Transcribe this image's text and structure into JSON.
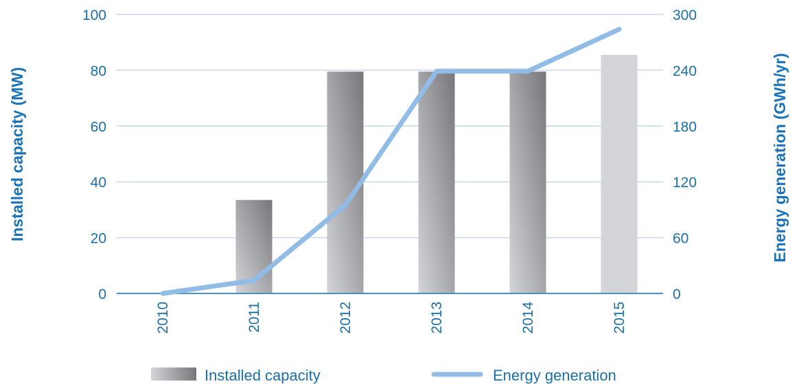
{
  "chart_data": {
    "type": "bar",
    "title": "",
    "categories": [
      "2010",
      "2011",
      "2012",
      "2013",
      "2014",
      "2015"
    ],
    "series": [
      {
        "name": "Installed capacity",
        "kind": "bar",
        "axis": "left",
        "values": [
          0,
          33.5,
          79.5,
          79.5,
          79.5,
          85.5
        ]
      },
      {
        "name": "Energy generation",
        "kind": "line",
        "axis": "right",
        "values": [
          0,
          14,
          95,
          239,
          239,
          284
        ]
      }
    ],
    "ylabel_left": "Installed capacity (MW)",
    "ylabel_right": "Energy generation (GWh/yr)",
    "ylim_left": [
      0,
      100
    ],
    "ylim_right": [
      0,
      300
    ],
    "yticks_left": [
      "0",
      "20",
      "40",
      "60",
      "80",
      "100"
    ],
    "yticks_right": [
      "0",
      "60",
      "120",
      "180",
      "240",
      "300"
    ],
    "grid": true,
    "legend_position": "bottom",
    "colors": {
      "axis_text": "#1a6fa8",
      "grid": "#c5d9ee",
      "axis_line": "#4a8fd0",
      "line": "#90bce6",
      "bar_dark": "#77777b",
      "bar_light": "#d4d5d8"
    }
  }
}
